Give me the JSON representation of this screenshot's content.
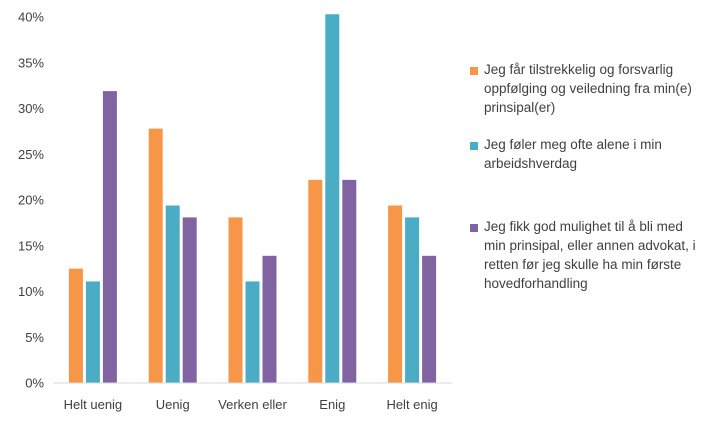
{
  "chart_data": {
    "type": "bar",
    "categories": [
      "Helt uenig",
      "Uenig",
      "Verken eller",
      "Enig",
      "Helt enig"
    ],
    "series": [
      {
        "name": "Jeg får tilstrekkelig og forsvarlig oppfølging og veiledning fra min(e) prinsipal(er)",
        "color": "#F79646",
        "values": [
          12.5,
          27.8,
          18.1,
          22.2,
          19.4
        ]
      },
      {
        "name": "Jeg føler meg ofte alene i min arbeidshverdag",
        "color": "#4BACC6",
        "values": [
          11.1,
          19.4,
          11.1,
          40.3,
          18.1
        ]
      },
      {
        "name": "Jeg fikk god mulighet til å bli med min prinsipal, eller annen advokat, i retten før jeg skulle ha min første hovedforhandling",
        "color": "#8064A2",
        "values": [
          31.9,
          18.1,
          13.9,
          22.2,
          13.9
        ]
      }
    ],
    "yticks": [
      "0%",
      "5%",
      "10%",
      "15%",
      "20%",
      "25%",
      "30%",
      "35%",
      "40%"
    ],
    "ylim": [
      0,
      40
    ],
    "grid": false,
    "legend_position": "right"
  }
}
